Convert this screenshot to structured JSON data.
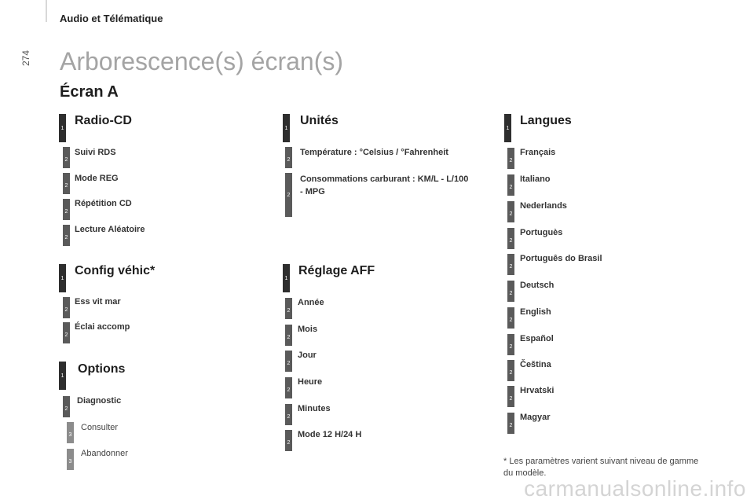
{
  "header": {
    "section": "Audio et Télématique",
    "page_number": "274"
  },
  "page_title": "Arborescence(s) écran(s)",
  "screen_title": "Écran A",
  "col1": {
    "radio": {
      "title": "Radio-CD",
      "items": [
        "Suivi RDS",
        "Mode REG",
        "Répétition CD",
        "Lecture Aléatoire"
      ]
    },
    "config": {
      "title": "Config véhic*",
      "items": [
        "Ess vit mar",
        "Éclai accomp"
      ]
    },
    "options": {
      "title": "Options",
      "item": "Diagnostic",
      "sub": [
        "Consulter",
        "Abandonner"
      ]
    }
  },
  "col2": {
    "unites": {
      "title": "Unités",
      "items": [
        "Température : °Celsius / °Fahrenheit",
        "Consommations carburant : KM/L - L/100 - MPG"
      ]
    },
    "reglage": {
      "title": "Réglage AFF",
      "items": [
        "Année",
        "Mois",
        "Jour",
        "Heure",
        "Minutes",
        "Mode 12 H/24 H"
      ]
    }
  },
  "col3": {
    "langues": {
      "title": "Langues",
      "items": [
        "Français",
        "Italiano",
        "Nederlands",
        "Portuguès",
        "Português do Brasil",
        "Deutsch",
        "English",
        "Español",
        "Čeština",
        "Hrvatski",
        "Magyar"
      ]
    }
  },
  "levels": {
    "one": "1",
    "two": "2",
    "three": "3"
  },
  "footnote": "* Les paramètres varient suivant niveau de gamme du modèle.",
  "watermark": "carmanualsonline.info"
}
